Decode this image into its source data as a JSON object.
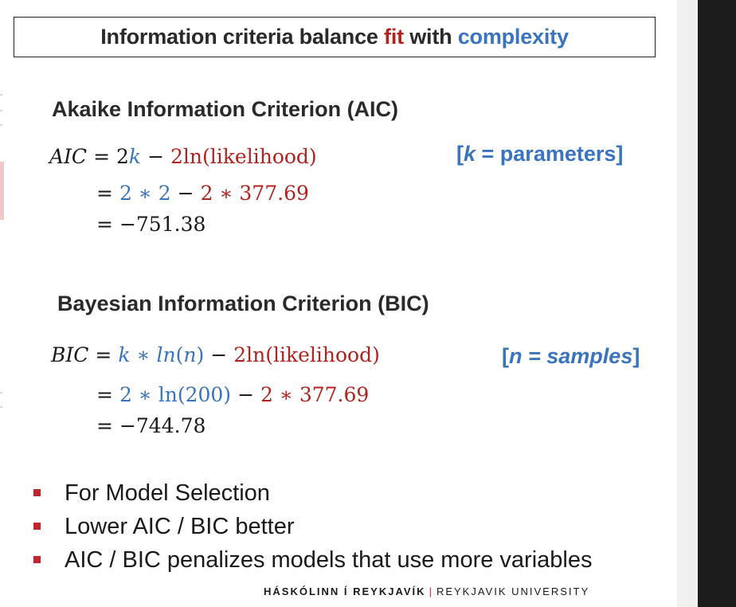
{
  "title": {
    "pre": "Information criteria balance ",
    "fit": "fit",
    "mid": " with ",
    "complexity": "complexity"
  },
  "aic": {
    "heading": "Akaike Information Criterion (AIC)",
    "lhs": "AIC",
    "eq": "=",
    "two": "2",
    "k": "k",
    "minus": "−",
    "term": "2ln(likelihood)",
    "step1_a": "2 ∗ 2",
    "step1_b": "2 ∗ 377.69",
    "result": "−751.38",
    "note_open": "[",
    "note_var": "k",
    "note_rest": " = parameters]"
  },
  "bic": {
    "heading": "Bayesian Information Criterion (BIC)",
    "lhs": "BIC",
    "eq": "=",
    "k": "k",
    "ln": "ln",
    "n": "n",
    "term": "2ln(likelihood)",
    "step1_a": "2 ∗ ln(200)",
    "step1_b": "2 ∗ 377.69",
    "result": "−744.78",
    "note_open": "[",
    "note_var": "n = samples",
    "note_close": "]"
  },
  "bullets": [
    "For Model Selection",
    "Lower AIC / BIC better",
    "AIC / BIC penalizes models that use more variables"
  ],
  "footer": {
    "left": "HÁSKÓLINN Í REYKJAVÍK",
    "separator": "|",
    "right": "REYKJAVIK UNIVERSITY"
  },
  "colors": {
    "accent_red": "#b0231f",
    "accent_blue": "#3a74be",
    "bullet": "#c0272d"
  }
}
